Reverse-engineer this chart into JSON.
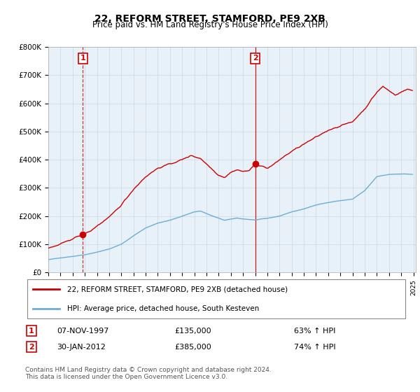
{
  "title": "22, REFORM STREET, STAMFORD, PE9 2XB",
  "subtitle": "Price paid vs. HM Land Registry's House Price Index (HPI)",
  "legend_line1": "22, REFORM STREET, STAMFORD, PE9 2XB (detached house)",
  "legend_line2": "HPI: Average price, detached house, South Kesteven",
  "transaction1_date": "07-NOV-1997",
  "transaction1_price": 135000,
  "transaction1_label": "63% ↑ HPI",
  "transaction2_date": "30-JAN-2012",
  "transaction2_price": 385000,
  "transaction2_label": "74% ↑ HPI",
  "footer": "Contains HM Land Registry data © Crown copyright and database right 2024.\nThis data is licensed under the Open Government Licence v3.0.",
  "hpi_color": "#6baed6",
  "price_color": "#cc0000",
  "vline_color": "#cc0000",
  "bg_color": "#e8f0f8",
  "ylim": [
    0,
    800000
  ],
  "yticks": [
    0,
    100000,
    200000,
    300000,
    400000,
    500000,
    600000,
    700000,
    800000
  ],
  "ytick_labels": [
    "£0",
    "£100K",
    "£200K",
    "£300K",
    "£400K",
    "£500K",
    "£600K",
    "£700K",
    "£800K"
  ],
  "xstart_year": 1995,
  "xend_year": 2025
}
